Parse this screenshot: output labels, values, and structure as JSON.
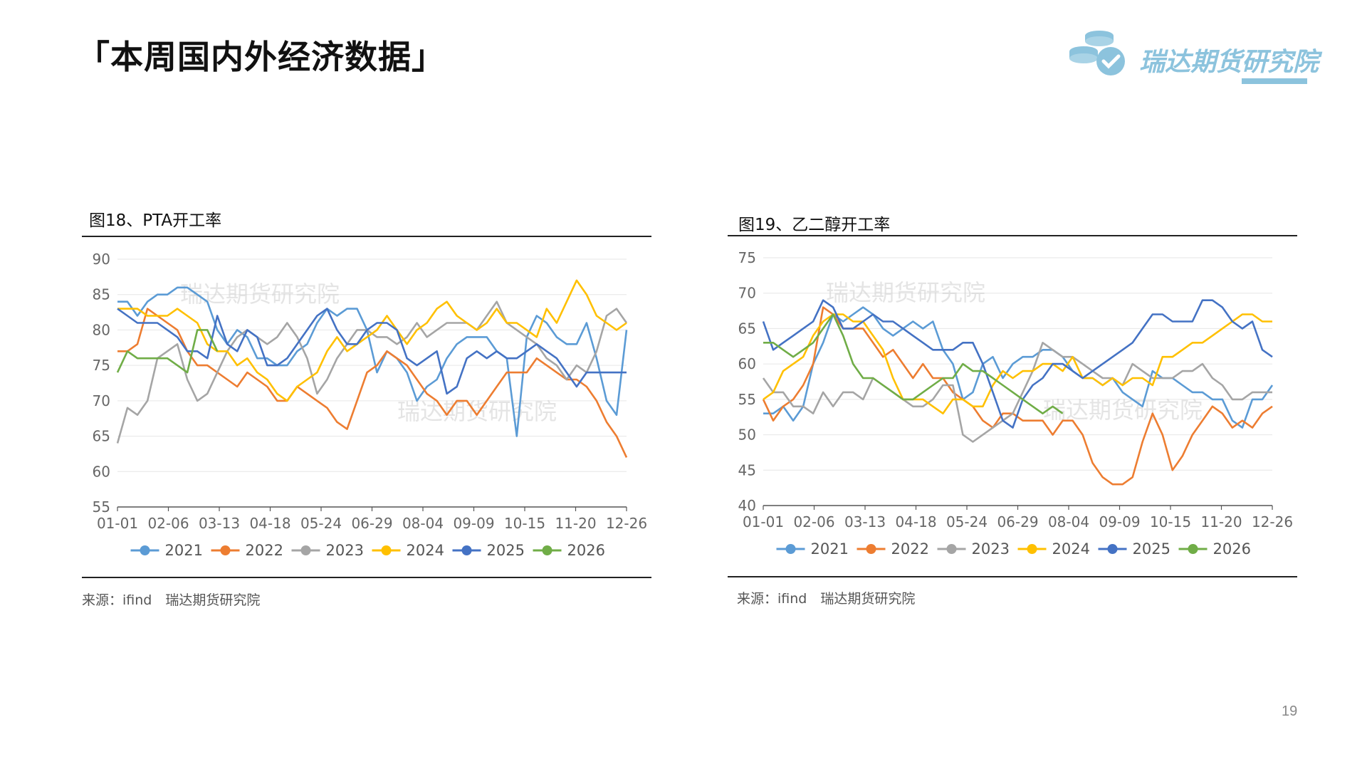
{
  "header": {
    "title": "「本周国内外经济数据」"
  },
  "logo": {
    "text": "瑞达期货研究院",
    "icon": "coin-stack-check-icon",
    "color": "#8cc3dd"
  },
  "page_number": "19",
  "watermark": "瑞达期货研究院",
  "colors": {
    "2021": "#5b9bd5",
    "2022": "#ed7d31",
    "2023": "#a5a5a5",
    "2024": "#ffc000",
    "2025": "#4472c4",
    "2026": "#70ad47"
  },
  "chart_data": [
    {
      "type": "line",
      "title": "图18、PTA开工率",
      "source": "来源：ifind　瑞达期货研究院",
      "xlabel": "",
      "ylabel": "",
      "ylim": [
        55,
        90
      ],
      "yticks": [
        55,
        60,
        65,
        70,
        75,
        80,
        85,
        90
      ],
      "x_tick_labels": [
        "01-01",
        "02-06",
        "03-13",
        "04-18",
        "05-24",
        "06-29",
        "08-04",
        "09-09",
        "10-15",
        "11-20",
        "12-26"
      ],
      "points_per_year": 52,
      "legend_position": "bottom",
      "grid": true,
      "series": [
        {
          "name": "2021",
          "color": "#5b9bd5",
          "values": [
            84,
            84,
            82,
            84,
            85,
            85,
            86,
            86,
            85,
            84,
            80,
            78,
            80,
            79,
            76,
            76,
            75,
            75,
            77,
            78,
            81,
            83,
            82,
            83,
            83,
            80,
            74,
            77,
            76,
            74,
            70,
            72,
            73,
            76,
            78,
            79,
            79,
            79,
            77,
            76,
            65,
            79,
            82,
            81,
            79,
            78,
            78,
            81,
            76,
            70,
            68,
            80
          ]
        },
        {
          "name": "2022",
          "color": "#ed7d31",
          "values": [
            77,
            77,
            78,
            83,
            82,
            81,
            80,
            77,
            75,
            75,
            74,
            73,
            72,
            74,
            73,
            72,
            70,
            70,
            72,
            71,
            70,
            69,
            67,
            66,
            70,
            74,
            75,
            77,
            76,
            75,
            73,
            71,
            70,
            68,
            70,
            70,
            68,
            70,
            72,
            74,
            74,
            74,
            76,
            75,
            74,
            73,
            73,
            72,
            70,
            67,
            65,
            62
          ]
        },
        {
          "name": "2023",
          "color": "#a5a5a5",
          "values": [
            64,
            69,
            68,
            70,
            76,
            77,
            78,
            73,
            70,
            71,
            74,
            77,
            79,
            80,
            79,
            78,
            79,
            81,
            79,
            76,
            71,
            73,
            76,
            78,
            80,
            80,
            79,
            79,
            78,
            79,
            81,
            79,
            80,
            81,
            81,
            81,
            80,
            82,
            84,
            81,
            80,
            79,
            78,
            76,
            75,
            73,
            75,
            74,
            77,
            82,
            83,
            81
          ]
        },
        {
          "name": "2024",
          "color": "#ffc000",
          "values": [
            83,
            83,
            83,
            82,
            82,
            82,
            83,
            82,
            81,
            78,
            77,
            77,
            75,
            76,
            74,
            73,
            71,
            70,
            72,
            73,
            74,
            77,
            79,
            77,
            78,
            79,
            80,
            82,
            80,
            78,
            80,
            81,
            83,
            84,
            82,
            81,
            80,
            81,
            83,
            81,
            81,
            80,
            79,
            83,
            81,
            84,
            87,
            85,
            82,
            81,
            80,
            81
          ]
        },
        {
          "name": "2025",
          "color": "#4472c4",
          "values": [
            83,
            82,
            81,
            81,
            81,
            80,
            79,
            77,
            77,
            76,
            82,
            78,
            77,
            80,
            79,
            75,
            75,
            76,
            78,
            80,
            82,
            83,
            80,
            78,
            78,
            80,
            81,
            81,
            80,
            76,
            75,
            76,
            77,
            71,
            72,
            76,
            77,
            76,
            77,
            76,
            76,
            77,
            78,
            77,
            76,
            74,
            72,
            74,
            74,
            74,
            74,
            74
          ]
        },
        {
          "name": "2026",
          "color": "#70ad47",
          "values": [
            74,
            77,
            76,
            76,
            76,
            76,
            75,
            74,
            80,
            80,
            77
          ]
        }
      ]
    },
    {
      "type": "line",
      "title": "图19、乙二醇开工率",
      "source": "来源：ifind　瑞达期货研究院",
      "xlabel": "",
      "ylabel": "",
      "ylim": [
        40,
        75
      ],
      "yticks": [
        40,
        45,
        50,
        55,
        60,
        65,
        70,
        75
      ],
      "x_tick_labels": [
        "01-01",
        "02-06",
        "03-13",
        "04-18",
        "05-24",
        "06-29",
        "08-04",
        "09-09",
        "10-15",
        "11-20",
        "12-26"
      ],
      "points_per_year": 52,
      "legend_position": "bottom",
      "grid": true,
      "series": [
        {
          "name": "2021",
          "color": "#5b9bd5",
          "values": [
            53,
            53,
            54,
            52,
            54,
            60,
            63,
            67,
            66,
            67,
            68,
            67,
            65,
            64,
            65,
            66,
            65,
            66,
            62,
            60,
            55,
            56,
            60,
            61,
            58,
            60,
            61,
            61,
            62,
            62,
            61,
            59,
            58,
            58,
            57,
            58,
            56,
            55,
            54,
            59,
            58,
            58,
            57,
            56,
            56,
            55,
            55,
            52,
            51,
            55,
            55,
            57
          ]
        },
        {
          "name": "2022",
          "color": "#ed7d31",
          "values": [
            55,
            52,
            54,
            55,
            57,
            60,
            68,
            67,
            65,
            65,
            65,
            63,
            61,
            62,
            60,
            58,
            60,
            58,
            58,
            56,
            55,
            54,
            52,
            51,
            53,
            53,
            52,
            52,
            52,
            50,
            52,
            52,
            50,
            46,
            44,
            43,
            43,
            44,
            49,
            53,
            50,
            45,
            47,
            50,
            52,
            54,
            53,
            51,
            52,
            51,
            53,
            54
          ]
        },
        {
          "name": "2023",
          "color": "#a5a5a5",
          "values": [
            58,
            56,
            56,
            54,
            54,
            53,
            56,
            54,
            56,
            56,
            55,
            58,
            57,
            56,
            55,
            54,
            54,
            55,
            57,
            57,
            50,
            49,
            50,
            51,
            52,
            53,
            56,
            59,
            63,
            62,
            61,
            61,
            60,
            59,
            58,
            58,
            57,
            60,
            59,
            58,
            58,
            58,
            59,
            59,
            60,
            58,
            57,
            55,
            55,
            56,
            56,
            56
          ]
        },
        {
          "name": "2024",
          "color": "#ffc000",
          "values": [
            55,
            56,
            59,
            60,
            61,
            64,
            66,
            67,
            67,
            66,
            66,
            64,
            62,
            58,
            55,
            55,
            55,
            54,
            53,
            55,
            55,
            54,
            54,
            57,
            59,
            58,
            59,
            59,
            60,
            60,
            59,
            61,
            58,
            58,
            57,
            58,
            57,
            58,
            58,
            57,
            61,
            61,
            62,
            63,
            63,
            64,
            65,
            66,
            67,
            67,
            66,
            66
          ]
        },
        {
          "name": "2025",
          "color": "#4472c4",
          "values": [
            66,
            62,
            63,
            64,
            65,
            66,
            69,
            68,
            65,
            65,
            66,
            67,
            66,
            66,
            65,
            64,
            63,
            62,
            62,
            62,
            63,
            63,
            60,
            56,
            52,
            51,
            55,
            57,
            58,
            60,
            60,
            59,
            58,
            59,
            60,
            61,
            62,
            63,
            65,
            67,
            67,
            66,
            66,
            66,
            69,
            69,
            68,
            66,
            65,
            66,
            62,
            61
          ]
        },
        {
          "name": "2026",
          "color": "#70ad47",
          "values": [
            63,
            63,
            62,
            61,
            62,
            63,
            65,
            67,
            64,
            60,
            58,
            58,
            57,
            56,
            55,
            55,
            56,
            57,
            58,
            58,
            60,
            59,
            59,
            58,
            57,
            56,
            55,
            54,
            53,
            54,
            53
          ]
        }
      ]
    }
  ]
}
